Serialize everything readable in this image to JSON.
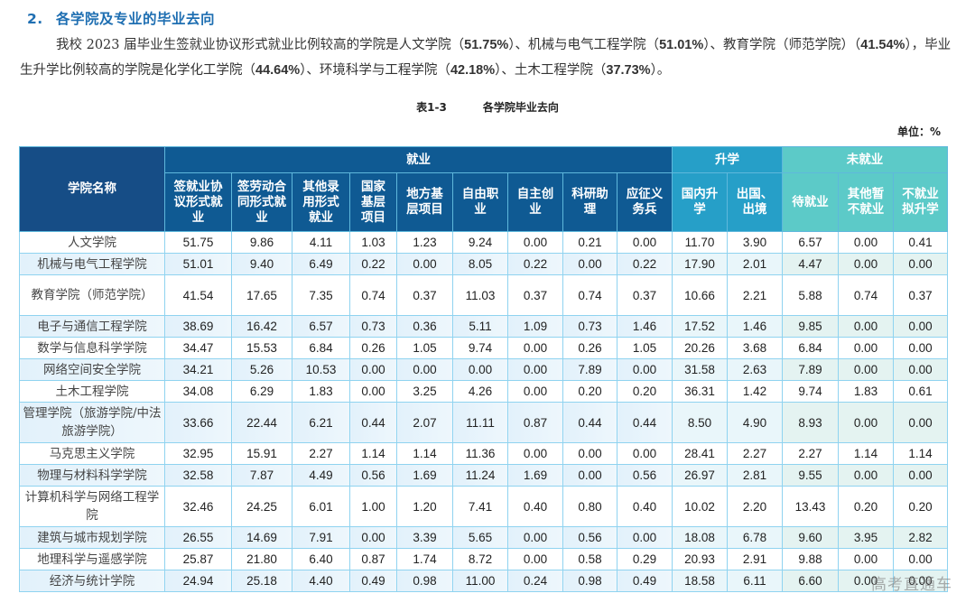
{
  "section": {
    "number": "2.",
    "title": "各学院及专业的毕业去向"
  },
  "paragraph": {
    "line1_pre": "我校 2023 届毕业生签就业协议形式就业比例较高的学院是人文学院（",
    "v1": "51.75%",
    "mid1": "）、机械与电气工程学院（",
    "v2": "51.01%",
    "mid2": "）、教育学院（师范学院）（",
    "v3": "41.54%",
    "mid3": "），毕业生升学比例较高的学院是化学化工学院（",
    "v4": "44.64%",
    "mid4": "）、环境科学与工程学院（",
    "v5": "42.18%",
    "mid5": "）、土木工程学院（",
    "v6": "37.73%",
    "end": "）。"
  },
  "caption": {
    "label": "表1-3",
    "title": "各学院毕业去向"
  },
  "unit": "单位：%",
  "table": {
    "name_header": "学院名称",
    "groups": {
      "employment": "就业",
      "further_study": "升学",
      "not_employed": "未就业"
    },
    "sub_headers": [
      "签就业协议形式就业",
      "签劳动合同形式就业",
      "其他录用形式就业",
      "国家基层项目",
      "地方基层项目",
      "自由职业",
      "自主创业",
      "科研助理",
      "应征义务兵",
      "国内升学",
      "出国、出境",
      "待就业",
      "其他暂不就业",
      "不就业拟升学"
    ],
    "rows": [
      {
        "name": "人文学院",
        "v": [
          "51.75",
          "9.86",
          "4.11",
          "1.03",
          "1.23",
          "9.24",
          "0.00",
          "0.21",
          "0.00",
          "11.70",
          "3.90",
          "6.57",
          "0.00",
          "0.41"
        ]
      },
      {
        "name": "机械与电气工程学院",
        "v": [
          "51.01",
          "9.40",
          "6.49",
          "0.22",
          "0.00",
          "8.05",
          "0.22",
          "0.00",
          "0.22",
          "17.90",
          "2.01",
          "4.47",
          "0.00",
          "0.00"
        ]
      },
      {
        "name": "教育学院（师范学院）",
        "v": [
          "41.54",
          "17.65",
          "7.35",
          "0.74",
          "0.37",
          "11.03",
          "0.37",
          "0.74",
          "0.37",
          "10.66",
          "2.21",
          "5.88",
          "0.74",
          "0.37"
        ]
      },
      {
        "name": "电子与通信工程学院",
        "v": [
          "38.69",
          "16.42",
          "6.57",
          "0.73",
          "0.36",
          "5.11",
          "1.09",
          "0.73",
          "1.46",
          "17.52",
          "1.46",
          "9.85",
          "0.00",
          "0.00"
        ]
      },
      {
        "name": "数学与信息科学学院",
        "v": [
          "34.47",
          "15.53",
          "6.84",
          "0.26",
          "1.05",
          "9.74",
          "0.00",
          "0.26",
          "1.05",
          "20.26",
          "3.68",
          "6.84",
          "0.00",
          "0.00"
        ]
      },
      {
        "name": "网络空间安全学院",
        "v": [
          "34.21",
          "5.26",
          "10.53",
          "0.00",
          "0.00",
          "0.00",
          "0.00",
          "7.89",
          "0.00",
          "31.58",
          "2.63",
          "7.89",
          "0.00",
          "0.00"
        ]
      },
      {
        "name": "土木工程学院",
        "v": [
          "34.08",
          "6.29",
          "1.83",
          "0.00",
          "3.25",
          "4.26",
          "0.00",
          "0.20",
          "0.20",
          "36.31",
          "1.42",
          "9.74",
          "1.83",
          "0.61"
        ]
      },
      {
        "name": "管理学院（旅游学院/中法旅游学院）",
        "v": [
          "33.66",
          "22.44",
          "6.21",
          "0.44",
          "2.07",
          "11.11",
          "0.87",
          "0.44",
          "0.44",
          "8.50",
          "4.90",
          "8.93",
          "0.00",
          "0.00"
        ]
      },
      {
        "name": "马克思主义学院",
        "v": [
          "32.95",
          "15.91",
          "2.27",
          "1.14",
          "1.14",
          "11.36",
          "0.00",
          "0.00",
          "0.00",
          "28.41",
          "2.27",
          "2.27",
          "1.14",
          "1.14"
        ]
      },
      {
        "name": "物理与材料科学学院",
        "v": [
          "32.58",
          "7.87",
          "4.49",
          "0.56",
          "1.69",
          "11.24",
          "1.69",
          "0.00",
          "0.56",
          "26.97",
          "2.81",
          "9.55",
          "0.00",
          "0.00"
        ]
      },
      {
        "name": "计算机科学与网络工程学院",
        "v": [
          "32.46",
          "24.25",
          "6.01",
          "1.00",
          "1.20",
          "7.41",
          "0.40",
          "0.80",
          "0.40",
          "10.02",
          "2.20",
          "13.43",
          "0.20",
          "0.20"
        ]
      },
      {
        "name": "建筑与城市规划学院",
        "v": [
          "26.55",
          "14.69",
          "7.91",
          "0.00",
          "3.39",
          "5.65",
          "0.00",
          "0.56",
          "0.00",
          "18.08",
          "6.78",
          "9.60",
          "3.95",
          "2.82"
        ]
      },
      {
        "name": "地理科学与遥感学院",
        "v": [
          "25.87",
          "21.80",
          "6.40",
          "0.87",
          "1.74",
          "8.72",
          "0.00",
          "0.58",
          "0.29",
          "20.93",
          "2.91",
          "9.88",
          "0.00",
          "0.00"
        ]
      },
      {
        "name": "经济与统计学院",
        "v": [
          "24.94",
          "25.18",
          "4.40",
          "0.49",
          "0.98",
          "11.00",
          "0.24",
          "0.98",
          "0.49",
          "18.58",
          "6.11",
          "6.60",
          "0.00",
          "0.00"
        ]
      }
    ]
  },
  "watermark": "高考直通车",
  "colors": {
    "title_blue": "#1f6fb2",
    "employment_header": "#0f5a93",
    "further_study_header": "#269fc8",
    "not_employed_header": "#5ccac8",
    "stripe": "#e2f1fb",
    "border": "#8fd3f0"
  }
}
